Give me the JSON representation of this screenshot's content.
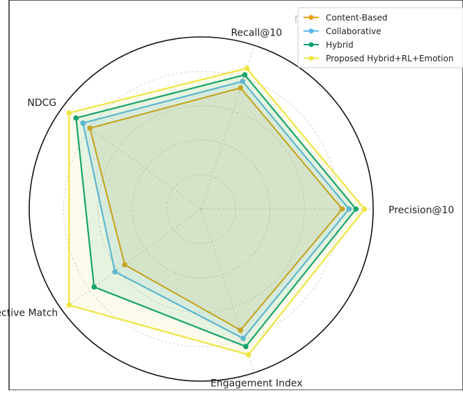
{
  "chart_data": {
    "type": "radar",
    "title": "mparison",
    "axes": [
      "Precision@10",
      "Recall@10",
      "NDCG",
      "Affective Match",
      "Engagement Index"
    ],
    "rlim": [
      0,
      1
    ],
    "grid": true,
    "legend_position": "top-right",
    "series": [
      {
        "name": "Content-Based",
        "color": "#E69F00",
        "values": [
          0.82,
          0.74,
          0.8,
          0.55,
          0.74
        ]
      },
      {
        "name": "Collaborative",
        "color": "#56B4E9",
        "values": [
          0.86,
          0.78,
          0.85,
          0.62,
          0.79
        ]
      },
      {
        "name": "Hybrid",
        "color": "#009E73",
        "values": [
          0.9,
          0.82,
          0.9,
          0.77,
          0.84
        ]
      },
      {
        "name": "Proposed Hybrid+RL+Emotion",
        "color": "#F0E442",
        "values": [
          0.95,
          0.86,
          0.95,
          0.95,
          0.89
        ]
      }
    ]
  }
}
